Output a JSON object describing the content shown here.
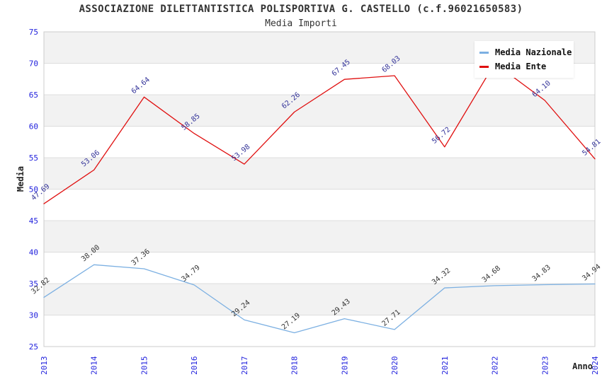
{
  "title": "ASSOCIAZIONE DILETTANTISTICA POLISPORTIVA G. CASTELLO (c.f.96021650583)",
  "subtitle": "Media Importi",
  "chart_data": {
    "type": "line",
    "x": [
      "2013",
      "2014",
      "2015",
      "2016",
      "2017",
      "2018",
      "2019",
      "2020",
      "2021",
      "2022",
      "2023",
      "2024"
    ],
    "xlabel": "Anno",
    "ylabel": "Media",
    "ylim": [
      25,
      75
    ],
    "yticks": [
      25,
      30,
      35,
      40,
      45,
      50,
      55,
      60,
      65,
      70,
      75
    ],
    "grid": "alternating-horizontal-bands",
    "legend_position": "top-right-inside",
    "series": [
      {
        "name": "Media Nazionale",
        "color": "#7cb0e2",
        "label_color": "#333333",
        "values": [
          32.82,
          38.0,
          37.36,
          34.79,
          29.24,
          27.19,
          29.43,
          27.71,
          34.32,
          34.68,
          34.83,
          34.94
        ],
        "labels": [
          "32.82",
          "38.00",
          "37.36",
          "34.79",
          "29.24",
          "27.19",
          "29.43",
          "27.71",
          "34.32",
          "34.68",
          "34.83",
          "34.94"
        ]
      },
      {
        "name": "Media Ente",
        "color": "#e01010",
        "label_color": "#333399",
        "values": [
          47.69,
          53.06,
          64.64,
          58.85,
          53.98,
          62.26,
          67.45,
          68.03,
          56.72,
          70.0,
          64.1,
          54.81
        ],
        "labels": [
          "47.69",
          "53.06",
          "64.64",
          "58.85",
          "53.98",
          "62.26",
          "67.45",
          "68.03",
          "56.72",
          null,
          "64.10",
          "54.81"
        ],
        "note": "2022 point value estimated from line apex; its data label is hidden behind the legend"
      }
    ],
    "colors": {
      "band_gray": "#f2f2f2",
      "band_white": "#ffffff",
      "gridline": "#dddddd",
      "plot_border": "#cccccc",
      "tick_label": "#2222dd"
    }
  }
}
